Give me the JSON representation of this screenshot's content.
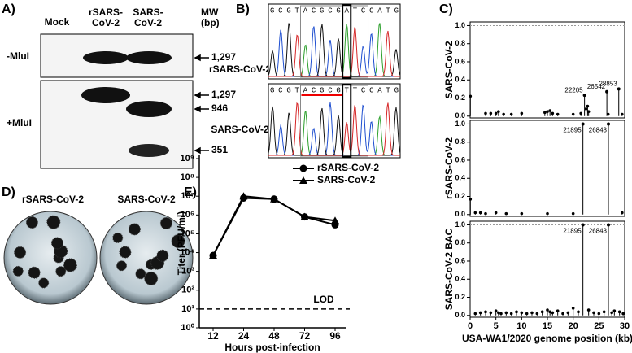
{
  "panel_labels": [
    "A)",
    "B)",
    "C)",
    "D)",
    "E)"
  ],
  "gel": {
    "lanes": [
      [
        "Mock"
      ],
      [
        "rSARS-",
        "CoV-2"
      ],
      [
        "SARS-",
        "CoV-2"
      ]
    ],
    "mw": [
      "MW",
      "(bp)"
    ],
    "conditions": [
      "-MluI",
      "+MluI"
    ],
    "band_labels": [
      "1,297",
      "1,297",
      "946",
      "351"
    ]
  },
  "chromatogram": {
    "traces": [
      {
        "name": "rSARS-CoV-2",
        "sequence": "GCGTACGCGATCCATG"
      },
      {
        "name": "SARS-CoV-2",
        "sequence": "GCGTACGCGTTCCATG"
      }
    ]
  },
  "plaques": {
    "labels": [
      "rSARS-CoV-2",
      "SARS-CoV-2"
    ]
  },
  "chart_data": [
    {
      "type": "lollipop",
      "ylabel": "SARS-CoV-2",
      "x": [
        0.05,
        3,
        4,
        5,
        5.5,
        6.5,
        8,
        10,
        14.5,
        15,
        15.5,
        16,
        17,
        20,
        21.5,
        22.5,
        22.8,
        23,
        26.8,
        29.5
      ],
      "values": [
        0.22,
        0.03,
        0.03,
        0.03,
        0.05,
        0.02,
        0.02,
        0.03,
        0.04,
        0.05,
        0.06,
        0.03,
        0.02,
        0.02,
        0.03,
        0.08,
        0.11,
        0.05,
        0.02,
        0.02
      ],
      "annotations": [
        {
          "x": 22.205,
          "y": 0.23,
          "text": "22205"
        },
        {
          "x": 26.542,
          "y": 0.27,
          "text": "26542"
        },
        {
          "x": 28.853,
          "y": 0.3,
          "text": "28853"
        }
      ],
      "xlim": [
        0,
        30
      ],
      "ylim": [
        -0.02,
        1.04
      ],
      "yticks": [
        {
          "value": 0,
          "label": "0.0"
        },
        0.2,
        0.4,
        0.6,
        0.8,
        {
          "value": 1,
          "label": "1.0"
        }
      ],
      "ref_line": 1
    },
    {
      "type": "lollipop",
      "ylabel": "rSARS-CoV-2",
      "x": [
        0.05,
        1,
        2,
        3,
        5,
        7,
        10,
        15,
        20,
        29.5
      ],
      "values": [
        0.17,
        0.02,
        0.02,
        0.01,
        0.02,
        0.01,
        0.01,
        0.01,
        0.01,
        0.02
      ],
      "annotations": [
        {
          "x": 21.895,
          "y": 1,
          "text": "21895"
        },
        {
          "x": 26.843,
          "y": 1,
          "text": "26843"
        }
      ],
      "xlim": [
        0,
        30
      ],
      "ylim": [
        -0.02,
        1.04
      ],
      "yticks": [
        {
          "value": 0,
          "label": "0.0"
        },
        0.2,
        0.4,
        0.6,
        0.8,
        {
          "value": 1,
          "label": "1.0"
        }
      ],
      "ref_line": 1
    },
    {
      "type": "lollipop",
      "ylabel": "SARS-CoV-2 BAC",
      "x": [
        1,
        2,
        3,
        4,
        5,
        5.5,
        6,
        7,
        8,
        9,
        10,
        11,
        12,
        13,
        14,
        15,
        15.5,
        16,
        17,
        18,
        19,
        20,
        21,
        23,
        24,
        25,
        26,
        27.5,
        28,
        29,
        29.7
      ],
      "values": [
        0.02,
        0.03,
        0.04,
        0.03,
        0.05,
        0.03,
        0.02,
        0.03,
        0.02,
        0.04,
        0.03,
        0.02,
        0.03,
        0.02,
        0.04,
        0.06,
        0.04,
        0.03,
        0.05,
        0.02,
        0.03,
        0.08,
        0.04,
        0.06,
        0.03,
        0.02,
        0.04,
        0.03,
        0.05,
        0.04,
        0.02
      ],
      "annotations": [
        {
          "x": 21.895,
          "y": 1,
          "text": "21895"
        },
        {
          "x": 26.843,
          "y": 1,
          "text": "26843"
        }
      ],
      "xlim": [
        0,
        30
      ],
      "ylim": [
        -0.02,
        1.04
      ],
      "yticks": [
        {
          "value": 0,
          "label": "0.0"
        },
        0.2,
        0.4,
        0.6,
        0.8,
        {
          "value": 1,
          "label": "1.0"
        }
      ],
      "ref_line": 1,
      "xticks": [
        0,
        5,
        10,
        15,
        20,
        25,
        30
      ],
      "xlabel": "USA-WA1/2020 genome position (kb)"
    },
    {
      "type": "line",
      "ylabel": "Titer (PFU/ml)",
      "xlabel": "Hours post-infection",
      "categories": [
        12,
        24,
        48,
        72,
        96
      ],
      "log_y": true,
      "ylim": [
        1,
        1000000000
      ],
      "yticks": [
        {
          "value": 1,
          "label": "10⁰"
        },
        {
          "value": 10,
          "label": "10¹"
        },
        {
          "value": 100,
          "label": "10²"
        },
        {
          "value": 1000,
          "label": "10³"
        },
        {
          "value": 10000,
          "label": "10⁴"
        },
        {
          "value": 100000,
          "label": "10⁵"
        },
        {
          "value": 1000000,
          "label": "10⁶"
        },
        {
          "value": 10000000,
          "label": "10⁷"
        },
        {
          "value": 100000000,
          "label": "10⁸"
        },
        {
          "value": 1000000000,
          "label": "10⁹"
        }
      ],
      "series": [
        {
          "name": "rSARS-CoV-2",
          "marker": "circle",
          "color": "#000000",
          "values": [
            7000,
            8000000,
            7000000,
            800000,
            300000
          ]
        },
        {
          "name": "SARS-CoV-2",
          "marker": "triangle",
          "color": "#000000",
          "values": [
            7000,
            10000000,
            7000000,
            800000,
            500000
          ]
        }
      ],
      "lod": 10,
      "lod_label": "LOD"
    }
  ]
}
